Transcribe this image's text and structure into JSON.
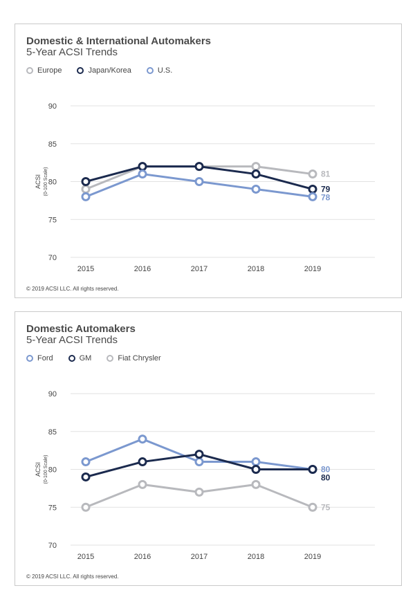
{
  "chart_data": [
    {
      "type": "line",
      "title": "Domestic & International Automakers",
      "subtitle": "5-Year ACSI Trends",
      "ylabel": "ACSI",
      "ylabel_sub": "(0-100 Scale)",
      "ylim": [
        70,
        90
      ],
      "yticks": [
        70,
        75,
        80,
        85,
        90
      ],
      "x": [
        "2015",
        "2016",
        "2017",
        "2018",
        "2019"
      ],
      "grid": true,
      "legend_position": "top-left",
      "series": [
        {
          "name": "Europe",
          "color": "#b8b9bd",
          "values": [
            79,
            82,
            82,
            82,
            81
          ],
          "end_label": "81"
        },
        {
          "name": "Japan/Korea",
          "color": "#1b2a4e",
          "values": [
            80,
            82,
            82,
            81,
            79
          ],
          "end_label": "79"
        },
        {
          "name": "U.S.",
          "color": "#7b98cf",
          "values": [
            78,
            81,
            80,
            79,
            78
          ],
          "end_label": "78"
        }
      ],
      "copyright": "© 2019 ACSI LLC. All rights reserved."
    },
    {
      "type": "line",
      "title": "Domestic Automakers",
      "subtitle": "5-Year ACSI Trends",
      "ylabel": "ACSI",
      "ylabel_sub": "(0-100 Scale)",
      "ylim": [
        70,
        90
      ],
      "yticks": [
        70,
        75,
        80,
        85,
        90
      ],
      "x": [
        "2015",
        "2016",
        "2017",
        "2018",
        "2019"
      ],
      "grid": true,
      "legend_position": "top-left",
      "series": [
        {
          "name": "Ford",
          "color": "#7b98cf",
          "values": [
            81,
            84,
            81,
            81,
            80
          ],
          "end_label": "80"
        },
        {
          "name": "GM",
          "color": "#1b2a4e",
          "values": [
            79,
            81,
            82,
            80,
            80
          ],
          "end_label": "80"
        },
        {
          "name": "Fiat Chrysler",
          "color": "#b8b9bd",
          "values": [
            75,
            78,
            77,
            78,
            75
          ],
          "end_label": "75"
        }
      ],
      "copyright": "© 2019 ACSI LLC. All rights reserved."
    }
  ]
}
